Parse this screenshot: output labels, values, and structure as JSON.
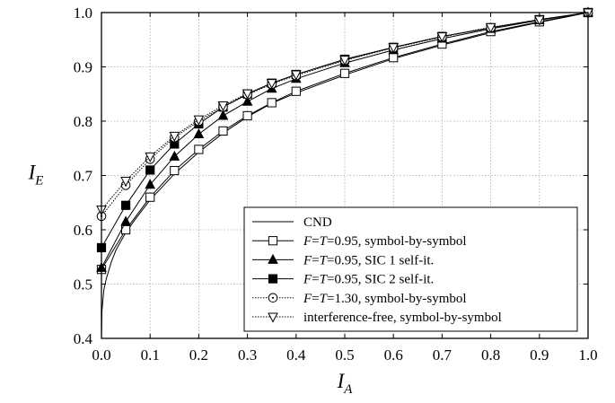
{
  "chart_data": {
    "type": "line",
    "xlabel": "I",
    "xlabel_sub": "A",
    "ylabel": "I",
    "ylabel_sub": "E",
    "xlim": [
      0.0,
      1.0
    ],
    "ylim": [
      0.4,
      1.0
    ],
    "x_ticks": [
      "0.0",
      "0.1",
      "0.2",
      "0.3",
      "0.4",
      "0.5",
      "0.6",
      "0.7",
      "0.8",
      "0.9",
      "1.0"
    ],
    "y_ticks": [
      "0.4",
      "0.5",
      "0.6",
      "0.7",
      "0.8",
      "0.9",
      "1.0"
    ],
    "grid": true,
    "legend_position": "bottom-right",
    "series": [
      {
        "name": "CND",
        "legend_parts": [
          {
            "text": "CND",
            "italic": false
          }
        ],
        "marker": "none",
        "line": "solid",
        "x": [
          0.0,
          0.001,
          0.005,
          0.01,
          0.02,
          0.03,
          0.05,
          0.07,
          0.1,
          0.15,
          0.2,
          0.25,
          0.3,
          0.35,
          0.4,
          0.5,
          0.6,
          0.7,
          0.8,
          0.9,
          1.0
        ],
        "y": [
          0.4,
          0.45,
          0.49,
          0.51,
          0.54,
          0.563,
          0.595,
          0.62,
          0.655,
          0.703,
          0.743,
          0.778,
          0.808,
          0.833,
          0.852,
          0.885,
          0.915,
          0.94,
          0.963,
          0.982,
          1.0
        ]
      },
      {
        "name": "F=T=0.95, symbol-by-symbol",
        "legend_parts": [
          {
            "text": "F",
            "italic": true
          },
          {
            "text": "=",
            "italic": false
          },
          {
            "text": "T",
            "italic": true
          },
          {
            "text": "=0.95, symbol-by-symbol",
            "italic": false
          }
        ],
        "marker": "square-open",
        "line": "solid",
        "x": [
          0.0,
          0.05,
          0.1,
          0.15,
          0.2,
          0.25,
          0.3,
          0.35,
          0.4,
          0.5,
          0.6,
          0.7,
          0.8,
          0.9,
          1.0
        ],
        "y": [
          0.527,
          0.6,
          0.66,
          0.709,
          0.748,
          0.782,
          0.81,
          0.834,
          0.855,
          0.888,
          0.917,
          0.942,
          0.965,
          0.983,
          1.0
        ]
      },
      {
        "name": "F=T=0.95, SIC 1 self-it.",
        "legend_parts": [
          {
            "text": "F",
            "italic": true
          },
          {
            "text": "=",
            "italic": false
          },
          {
            "text": "T",
            "italic": true
          },
          {
            "text": "=0.95, SIC 1 self-it.",
            "italic": false
          }
        ],
        "marker": "triangle-filled",
        "line": "solid",
        "x": [
          0.0,
          0.05,
          0.1,
          0.15,
          0.2,
          0.25,
          0.3,
          0.35,
          0.4,
          0.5,
          0.6,
          0.7,
          0.8,
          0.9,
          1.0
        ],
        "y": [
          0.53,
          0.615,
          0.683,
          0.735,
          0.776,
          0.81,
          0.836,
          0.86,
          0.878,
          0.907,
          0.931,
          0.952,
          0.97,
          0.986,
          1.0
        ]
      },
      {
        "name": "F=T=0.95, SIC 2 self-it.",
        "legend_parts": [
          {
            "text": "F",
            "italic": true
          },
          {
            "text": "=",
            "italic": false
          },
          {
            "text": "T",
            "italic": true
          },
          {
            "text": "=0.95, SIC 2 self-it.",
            "italic": false
          }
        ],
        "marker": "square-filled",
        "line": "solid",
        "x": [
          0.0,
          0.05,
          0.1,
          0.15,
          0.2,
          0.25,
          0.3,
          0.35,
          0.4,
          0.5,
          0.6,
          0.7,
          0.8,
          0.9,
          1.0
        ],
        "y": [
          0.567,
          0.645,
          0.71,
          0.758,
          0.795,
          0.826,
          0.85,
          0.87,
          0.886,
          0.914,
          0.936,
          0.956,
          0.972,
          0.987,
          1.0
        ]
      },
      {
        "name": "F=T=1.30, symbol-by-symbol",
        "legend_parts": [
          {
            "text": "F",
            "italic": true
          },
          {
            "text": "=",
            "italic": false
          },
          {
            "text": "T",
            "italic": true
          },
          {
            "text": "=1.30, symbol-by-symbol",
            "italic": false
          }
        ],
        "marker": "circle-open",
        "line": "dotted",
        "x": [
          0.0,
          0.05,
          0.1,
          0.15,
          0.2,
          0.25,
          0.3,
          0.35,
          0.4,
          0.5,
          0.6,
          0.7,
          0.8,
          0.9,
          1.0
        ],
        "y": [
          0.625,
          0.682,
          0.73,
          0.77,
          0.8,
          0.826,
          0.849,
          0.868,
          0.884,
          0.912,
          0.935,
          0.955,
          0.972,
          0.987,
          1.0
        ]
      },
      {
        "name": "interference-free, symbol-by-symbol",
        "legend_parts": [
          {
            "text": "interference-free, symbol-by-symbol",
            "italic": false
          }
        ],
        "marker": "triangle-down-open",
        "line": "dotted",
        "x": [
          0.0,
          0.05,
          0.1,
          0.15,
          0.2,
          0.25,
          0.3,
          0.35,
          0.4,
          0.5,
          0.6,
          0.7,
          0.8,
          0.9,
          1.0
        ],
        "y": [
          0.637,
          0.69,
          0.735,
          0.773,
          0.803,
          0.829,
          0.851,
          0.87,
          0.886,
          0.913,
          0.936,
          0.956,
          0.973,
          0.987,
          1.0
        ]
      }
    ]
  }
}
